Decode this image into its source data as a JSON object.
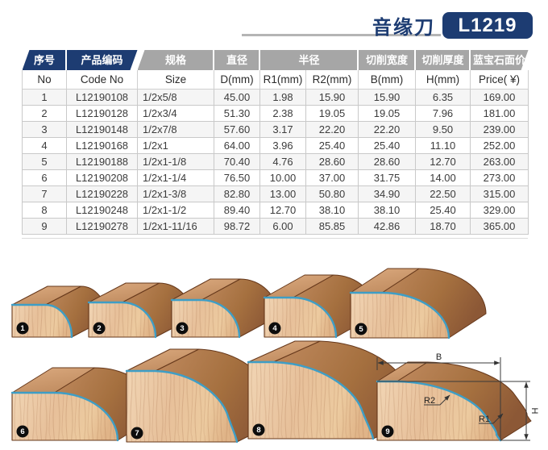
{
  "header": {
    "title": "音缘刀",
    "model": "L1219"
  },
  "table": {
    "cn": [
      "序号",
      "产品编码",
      "规格",
      "直径",
      "半径",
      "切削宽度",
      "切削厚度",
      "蓝宝石面价"
    ],
    "en": [
      "No",
      "Code No",
      "Size",
      "D(mm)",
      "R1(mm)",
      "R2(mm)",
      "B(mm)",
      "H(mm)",
      "Price( ¥)"
    ],
    "rows": [
      [
        "1",
        "L12190108",
        "1/2x5/8",
        "45.00",
        "1.98",
        "15.90",
        "15.90",
        "6.35",
        "169.00"
      ],
      [
        "2",
        "L12190128",
        "1/2x3/4",
        "51.30",
        "2.38",
        "19.05",
        "19.05",
        "7.96",
        "181.00"
      ],
      [
        "3",
        "L12190148",
        "1/2x7/8",
        "57.60",
        "3.17",
        "22.20",
        "22.20",
        "9.50",
        "239.00"
      ],
      [
        "4",
        "L12190168",
        "1/2x1",
        "64.00",
        "3.96",
        "25.40",
        "25.40",
        "11.10",
        "252.00"
      ],
      [
        "5",
        "L12190188",
        "1/2x1-1/8",
        "70.40",
        "4.76",
        "28.60",
        "28.60",
        "12.70",
        "263.00"
      ],
      [
        "6",
        "L12190208",
        "1/2x1-1/4",
        "76.50",
        "10.00",
        "37.00",
        "31.75",
        "14.00",
        "273.00"
      ],
      [
        "7",
        "L12190228",
        "1/2x1-3/8",
        "82.80",
        "13.00",
        "50.80",
        "34.90",
        "22.50",
        "315.00"
      ],
      [
        "8",
        "L12190248",
        "1/2x1-1/2",
        "89.40",
        "12.70",
        "38.10",
        "38.10",
        "25.40",
        "329.00"
      ],
      [
        "9",
        "L12190278",
        "1/2x1-11/16",
        "98.72",
        "6.00",
        "85.85",
        "42.86",
        "18.70",
        "365.00"
      ]
    ]
  },
  "profiles": {
    "numbers": [
      "1",
      "2",
      "3",
      "4",
      "5",
      "6",
      "7",
      "8",
      "9"
    ],
    "annotations": {
      "width": "B",
      "height": "H",
      "r1": "R1",
      "r2": "R2"
    }
  },
  "colors": {
    "navy": "#1d3c72",
    "header_gray": "#a6a6a6",
    "profile_blue": "#3e9ec6",
    "wood_light": "#eecda8",
    "wood_mid": "#cf9d73",
    "wood_dark": "#96613c",
    "outline_brown": "#66381b",
    "dim_line": "#3a3a3a"
  }
}
